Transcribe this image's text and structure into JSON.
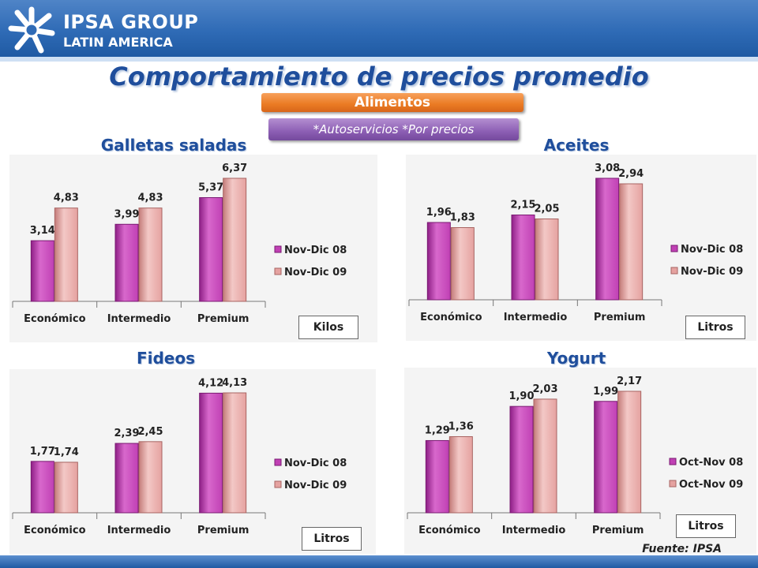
{
  "header": {
    "brand_line1": "IPSA GROUP",
    "brand_line2": "LATIN AMERICA"
  },
  "title": "Comportamiento de precios promedio",
  "category_label": "Alimentos",
  "filter_label": "*Autoservicios  *Por precios",
  "source_note": "Fuente: IPSA",
  "colors": {
    "series1": "#c040b4",
    "series2": "#e5a2a0",
    "title": "#1f4e9c"
  },
  "chart_data": [
    {
      "type": "bar",
      "title": "Galletas saladas",
      "categories": [
        "Económico",
        "Intermedio",
        "Premium"
      ],
      "series": [
        {
          "name": "Nov-Dic 08",
          "values": [
            3.14,
            3.99,
            5.37
          ]
        },
        {
          "name": "Nov-Dic 09",
          "values": [
            4.83,
            4.83,
            6.37
          ]
        }
      ],
      "value_labels": [
        [
          "3,14",
          "3,99",
          "5,37"
        ],
        [
          "4,83",
          "4,83",
          "6,37"
        ]
      ],
      "unit": "Kilos",
      "ylim": [
        0,
        6.37
      ]
    },
    {
      "type": "bar",
      "title": "Aceites",
      "categories": [
        "Económico",
        "Intermedio",
        "Premium"
      ],
      "series": [
        {
          "name": "Nov-Dic 08",
          "values": [
            1.96,
            2.15,
            3.08
          ]
        },
        {
          "name": "Nov-Dic 09",
          "values": [
            1.83,
            2.05,
            2.94
          ]
        }
      ],
      "value_labels": [
        [
          "1,96",
          "2,15",
          "3,08"
        ],
        [
          "1,83",
          "2,05",
          "2,94"
        ]
      ],
      "unit": "Litros",
      "ylim": [
        0,
        3.08
      ]
    },
    {
      "type": "bar",
      "title": "Fideos",
      "categories": [
        "Económico",
        "Intermedio",
        "Premium"
      ],
      "series": [
        {
          "name": "Nov-Dic 08",
          "values": [
            1.77,
            2.39,
            4.12
          ]
        },
        {
          "name": "Nov-Dic 09",
          "values": [
            1.74,
            2.45,
            4.13
          ]
        }
      ],
      "value_labels": [
        [
          "1,77",
          "2,39",
          "4,12"
        ],
        [
          "1,74",
          "2,45",
          "4,13"
        ]
      ],
      "unit": "Litros",
      "ylim": [
        0,
        4.13
      ]
    },
    {
      "type": "bar",
      "title": "Yogurt",
      "categories": [
        "Económico",
        "Intermedio",
        "Premium"
      ],
      "series": [
        {
          "name": "Oct-Nov 08",
          "values": [
            1.29,
            1.9,
            1.99
          ]
        },
        {
          "name": "Oct-Nov 09",
          "values": [
            1.36,
            2.03,
            2.17
          ]
        }
      ],
      "value_labels": [
        [
          "1,29",
          "1,90",
          "1,99"
        ],
        [
          "1,36",
          "2,03",
          "2,17"
        ]
      ],
      "unit": "Litros",
      "ylim": [
        0,
        2.17
      ]
    }
  ]
}
